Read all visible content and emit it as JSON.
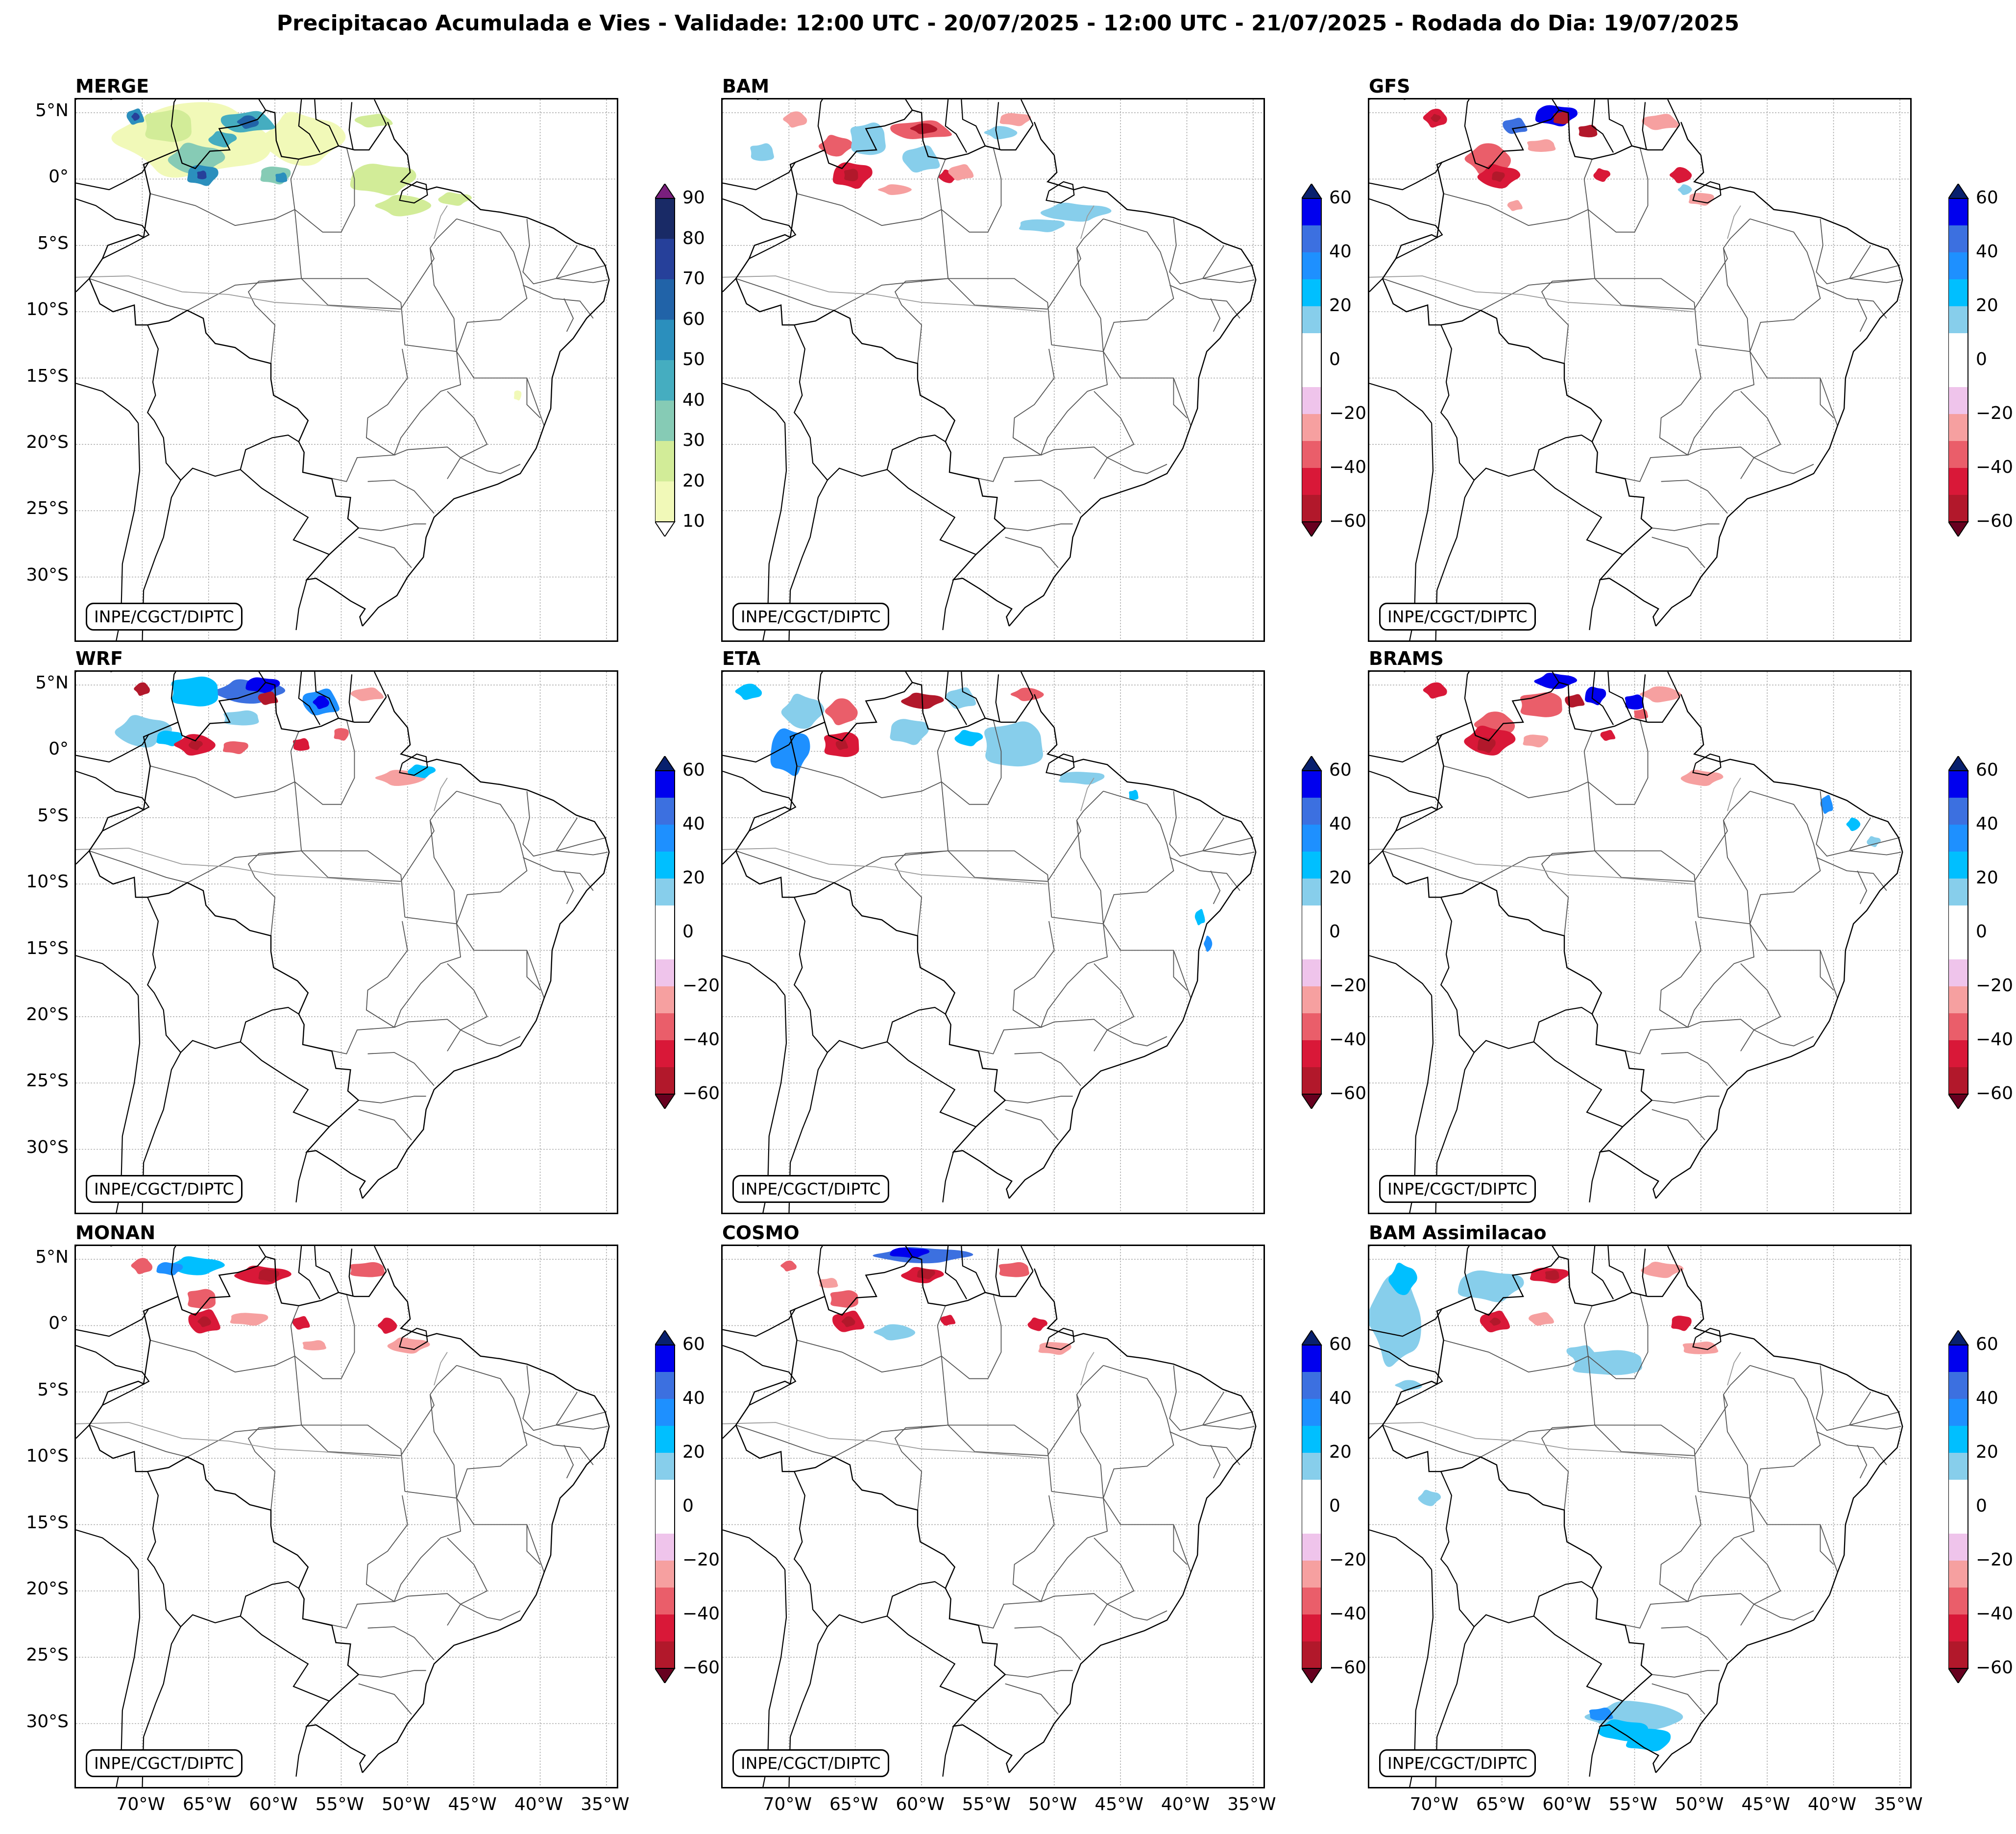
{
  "suptitle": "Precipitacao Acumulada e Vies - Validade: 12:00 UTC - 20/07/2025 - 12:00 UTC - 21/07/2025 - Rodada do Dia: 19/07/2025",
  "credit": "INPE/CGCT/DIPTC",
  "lat_labels": [
    "5°N",
    "0°",
    "5°S",
    "10°S",
    "15°S",
    "20°S",
    "25°S",
    "30°S"
  ],
  "lon_labels": [
    "70°W",
    "65°W",
    "60°W",
    "55°W",
    "50°W",
    "45°W",
    "40°W",
    "35°W"
  ],
  "chart_data": {
    "type": "heatmap",
    "extent": {
      "lon": [
        -75,
        -34
      ],
      "lat": [
        -35,
        6
      ]
    },
    "panels": [
      {
        "title": "MERGE",
        "kind": "precip"
      },
      {
        "title": "BAM",
        "kind": "bias"
      },
      {
        "title": "GFS",
        "kind": "bias"
      },
      {
        "title": "WRF",
        "kind": "bias"
      },
      {
        "title": "ETA",
        "kind": "bias"
      },
      {
        "title": "BRAMS",
        "kind": "bias"
      },
      {
        "title": "MONAN",
        "kind": "bias"
      },
      {
        "title": "COSMO",
        "kind": "bias"
      },
      {
        "title": "BAM Assimilacao",
        "kind": "bias"
      }
    ],
    "precip_scale": {
      "ticks": [
        "10",
        "20",
        "30",
        "40",
        "50",
        "60",
        "70",
        "80",
        "90"
      ],
      "colors": [
        "#f1f9b8",
        "#d2ec98",
        "#86cbb5",
        "#45adc0",
        "#2b8fbd",
        "#2163a8",
        "#26409a",
        "#192a66"
      ],
      "under": "#ffffff",
      "over": "#7a1f7d"
    },
    "bias_scale": {
      "ticks": [
        "60",
        "40",
        "20",
        "0",
        "−20",
        "−40",
        "−60"
      ],
      "colors": [
        "#0000ee",
        "#3c70e0",
        "#1e90ff",
        "#00bfff",
        "#87ceeb",
        "#ffffff",
        "#ffffff",
        "#efc4eb",
        "#f6a0a0",
        "#ea5e6a",
        "#d91838",
        "#b2182b"
      ],
      "over": "#08206e",
      "under": "#67001f"
    }
  }
}
